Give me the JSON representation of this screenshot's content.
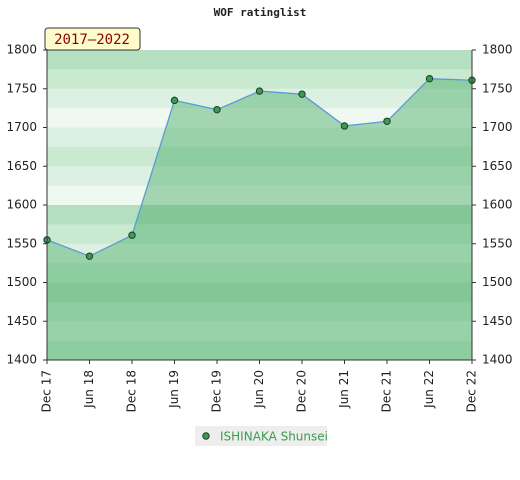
{
  "chart_data": {
    "type": "area",
    "title": "WOF ratinglist",
    "badge": "2017–2022",
    "categories": [
      "Dec 17",
      "Jun 18",
      "Dec 18",
      "Jun 19",
      "Dec 19",
      "Jun 20",
      "Dec 20",
      "Jun 21",
      "Dec 21",
      "Jun 22",
      "Dec 22"
    ],
    "series": [
      {
        "name": "ISHINAKA Shunsei",
        "color": "#3d9b4f",
        "values": [
          1555,
          1534,
          1561,
          1735,
          1723,
          1747,
          1743,
          1702,
          1708,
          1763,
          1761
        ]
      }
    ],
    "ylim": [
      1400,
      1800
    ],
    "yticks": [
      1400,
      1450,
      1500,
      1550,
      1600,
      1650,
      1700,
      1750,
      1800
    ],
    "y2lim": [
      1400,
      1800
    ],
    "y2ticks": [
      1400,
      1450,
      1500,
      1550,
      1600,
      1650,
      1700,
      1750,
      1800
    ],
    "legend": "bottom"
  }
}
